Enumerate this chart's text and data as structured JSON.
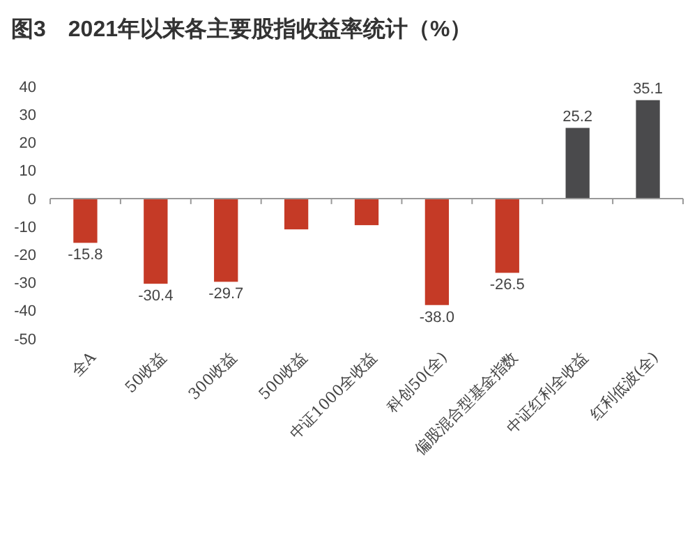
{
  "chart_data": {
    "type": "bar",
    "title": "图3　2021年以来各主要股指收益率统计（%）",
    "categories": [
      "全A",
      "50收益",
      "300收益",
      "500收益",
      "中证1000全收益",
      "科创50(全)",
      "偏股混合型基金指数",
      "中证红利全收益",
      "红利低波(全)"
    ],
    "values": [
      -15.8,
      -30.4,
      -29.7,
      -11.0,
      -9.5,
      -38.0,
      -26.5,
      25.2,
      35.1
    ],
    "value_labels": [
      "-15.8",
      "-30.4",
      "-29.7",
      null,
      null,
      "-38.0",
      "-26.5",
      "25.2",
      "35.1"
    ],
    "colors": [
      "#c53a26",
      "#c53a26",
      "#c53a26",
      "#c53a26",
      "#c53a26",
      "#c53a26",
      "#c53a26",
      "#4a4a4c",
      "#4a4a4c"
    ],
    "ylim": [
      -50,
      40
    ],
    "yticks": [
      -50,
      -40,
      -30,
      -20,
      -10,
      0,
      10,
      20,
      30,
      40
    ]
  }
}
